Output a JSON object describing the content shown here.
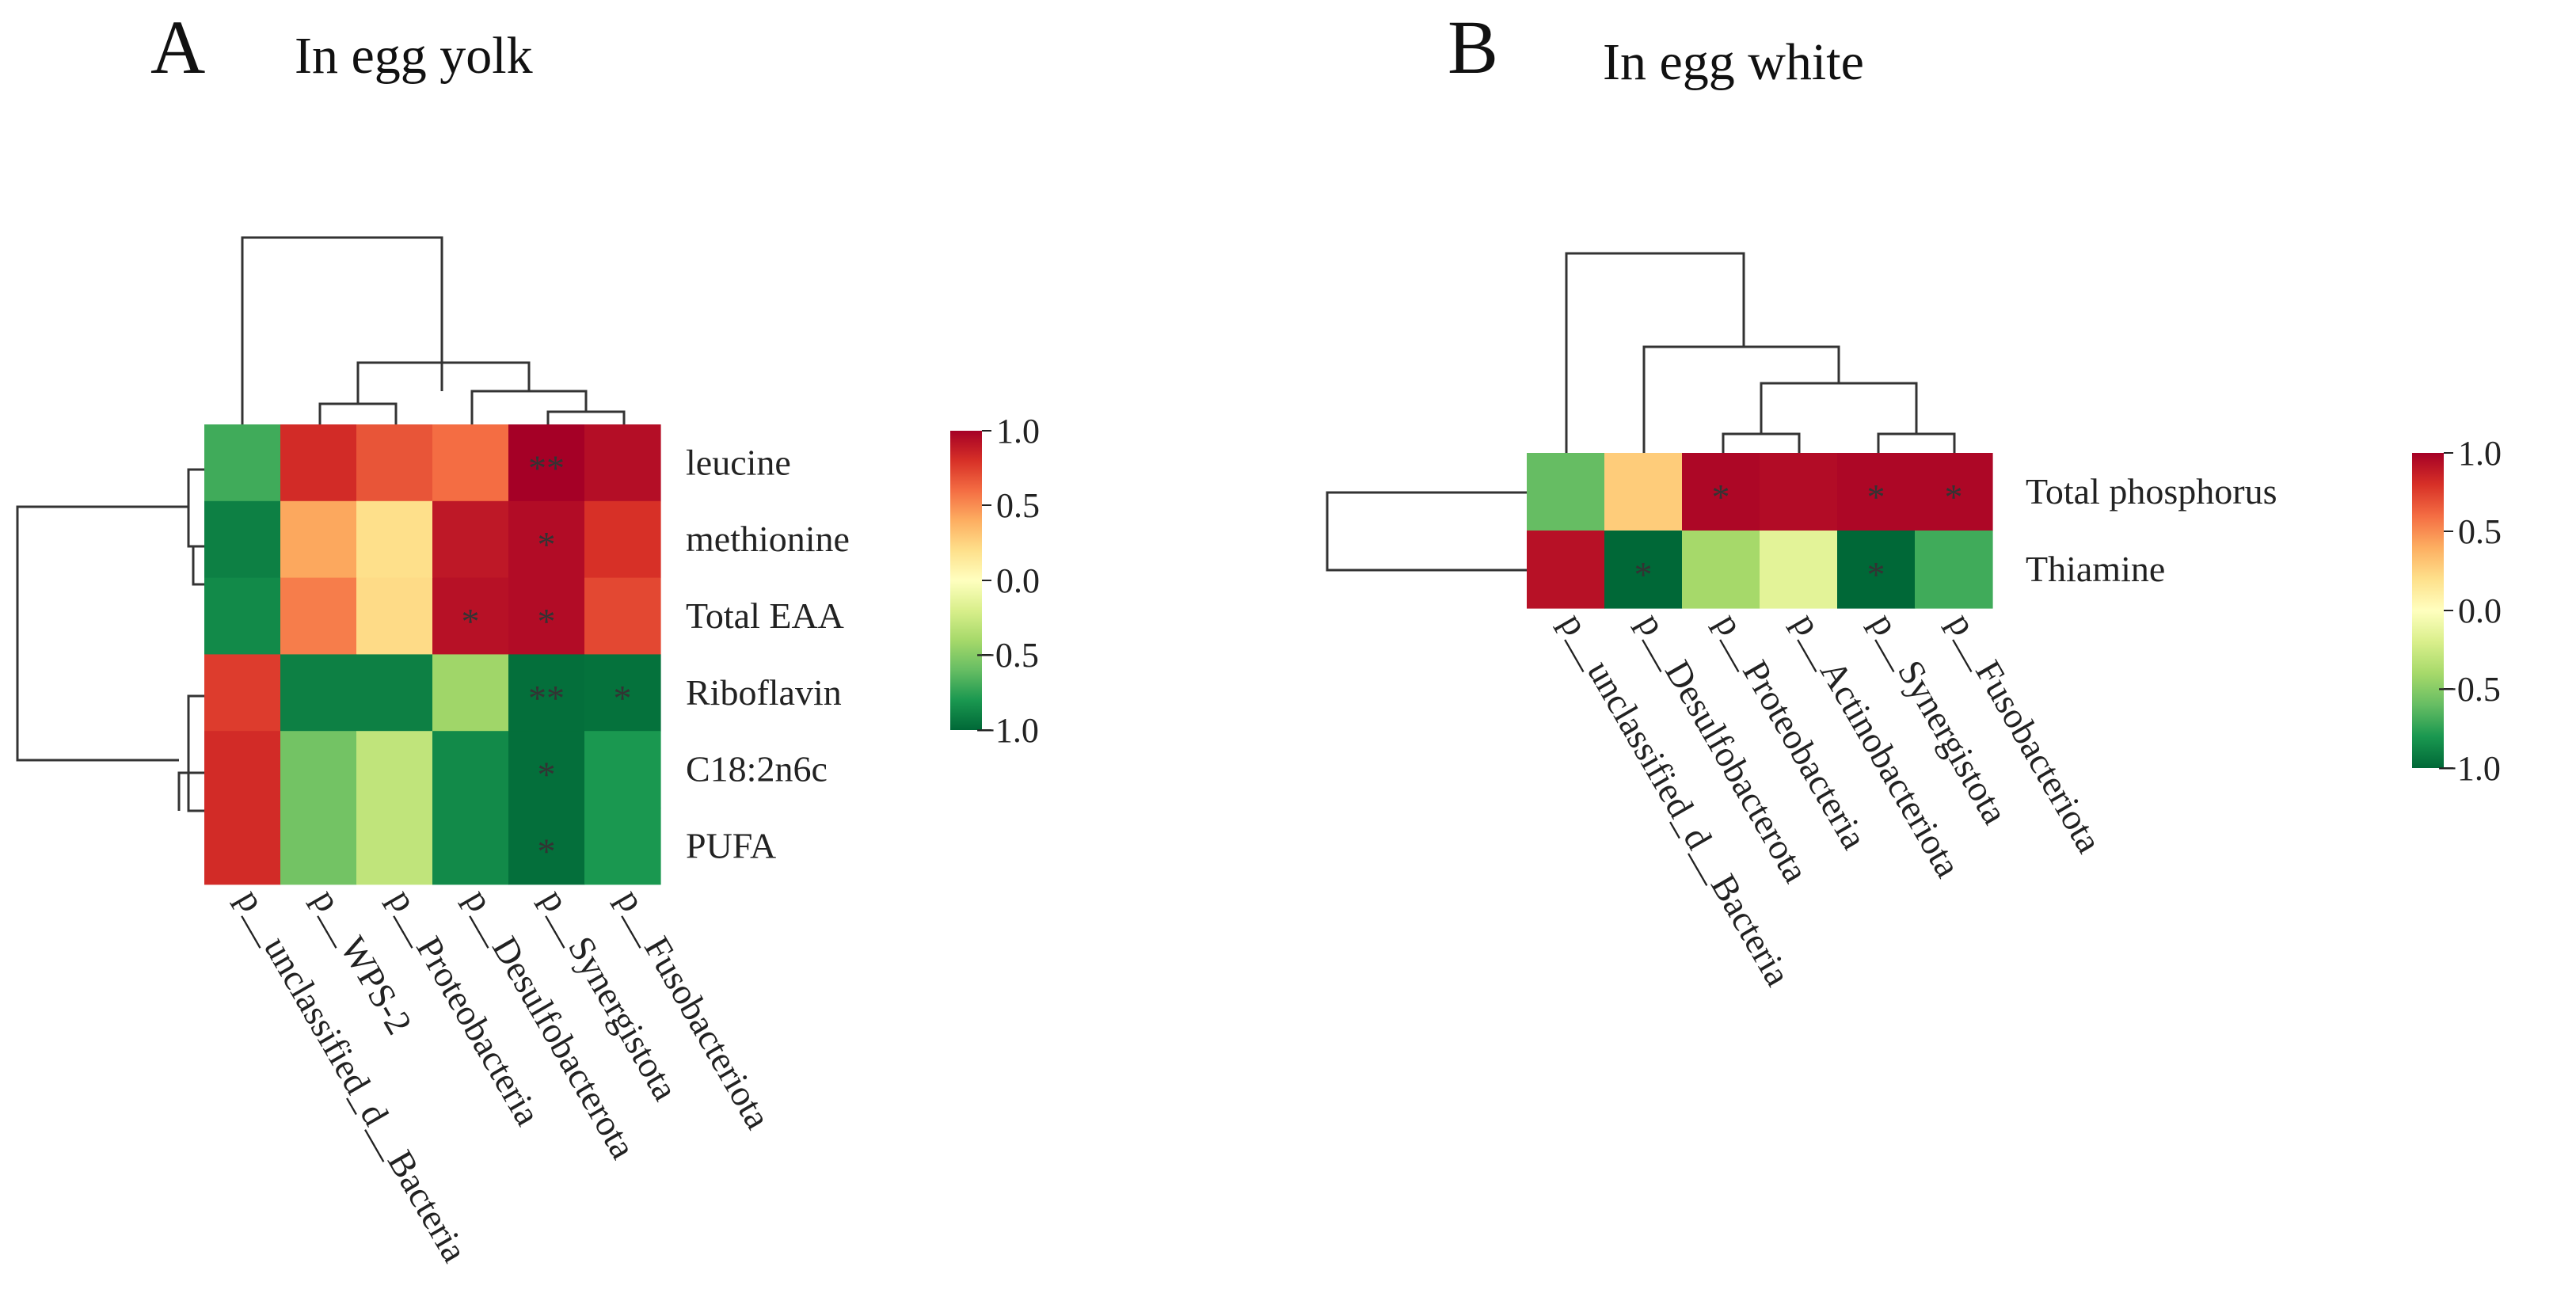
{
  "colors": {
    "scale": [
      "#006837",
      "#1a9850",
      "#66bd63",
      "#a6d96a",
      "#d9ef8b",
      "#ffffbf",
      "#fee08b",
      "#fdae61",
      "#f46d43",
      "#d73027",
      "#a50026"
    ],
    "sig_text": "#333333"
  },
  "panels": [
    {
      "letter": "A",
      "title": "In egg yolk",
      "colorbar_ticks": [
        "1.0",
        "0.5",
        "0.0",
        "−0.5",
        "−1.0"
      ]
    },
    {
      "letter": "B",
      "title": "In egg white",
      "colorbar_ticks": [
        "1.0",
        "0.5",
        "0.0",
        "−0.5",
        "−1.0"
      ]
    }
  ],
  "chart_data": [
    {
      "type": "heatmap",
      "title": "In egg yolk",
      "rows": [
        "leucine",
        "methionine",
        "Total EAA",
        "Riboflavin",
        "C18:2n6c",
        "PUFA"
      ],
      "columns": [
        "p__unclassified_d__Bacteria",
        "p__WPS-2",
        "p__Proteobacteria",
        "p__Desulfobacterota",
        "p__Synergistota",
        "p__Fusobacteriota"
      ],
      "values": [
        [
          -0.7,
          0.82,
          0.68,
          0.6,
          1.0,
          0.94
        ],
        [
          -0.9,
          0.42,
          0.2,
          0.9,
          0.95,
          0.8
        ],
        [
          -0.86,
          0.55,
          0.22,
          0.93,
          0.95,
          0.72
        ],
        [
          0.76,
          -0.9,
          -0.9,
          -0.42,
          -0.97,
          -0.96
        ],
        [
          0.82,
          -0.56,
          -0.3,
          -0.86,
          -0.97,
          -0.8
        ],
        [
          0.82,
          -0.56,
          -0.3,
          -0.86,
          -0.97,
          -0.8
        ]
      ],
      "significance": [
        [
          "",
          "",
          "",
          "",
          "**",
          ""
        ],
        [
          "",
          "",
          "",
          "",
          "*",
          ""
        ],
        [
          "",
          "",
          "",
          "*",
          "*",
          ""
        ],
        [
          "",
          "",
          "",
          "",
          "**",
          "*"
        ],
        [
          "",
          "",
          "",
          "",
          "*",
          ""
        ],
        [
          "",
          "",
          "",
          "",
          "*",
          ""
        ]
      ],
      "vmin": -1.0,
      "vmax": 1.0
    },
    {
      "type": "heatmap",
      "title": "In egg white",
      "rows": [
        "Total phosphorus",
        "Thiamine"
      ],
      "columns": [
        "p__unclassified_d__Bacteria",
        "p__Desulfobacterota",
        "p__Proteobacteria",
        "p__Actinobacteriota",
        "p__Synergistota",
        "p__Fusobacteriota"
      ],
      "values": [
        [
          -0.6,
          0.28,
          0.97,
          0.95,
          0.97,
          0.97
        ],
        [
          0.93,
          -1.0,
          -0.4,
          -0.15,
          -1.0,
          -0.7
        ]
      ],
      "significance": [
        [
          "",
          "",
          "*",
          "",
          "*",
          "*"
        ],
        [
          "",
          "*",
          "",
          "",
          "*",
          ""
        ]
      ],
      "vmin": -1.0,
      "vmax": 1.0
    }
  ]
}
